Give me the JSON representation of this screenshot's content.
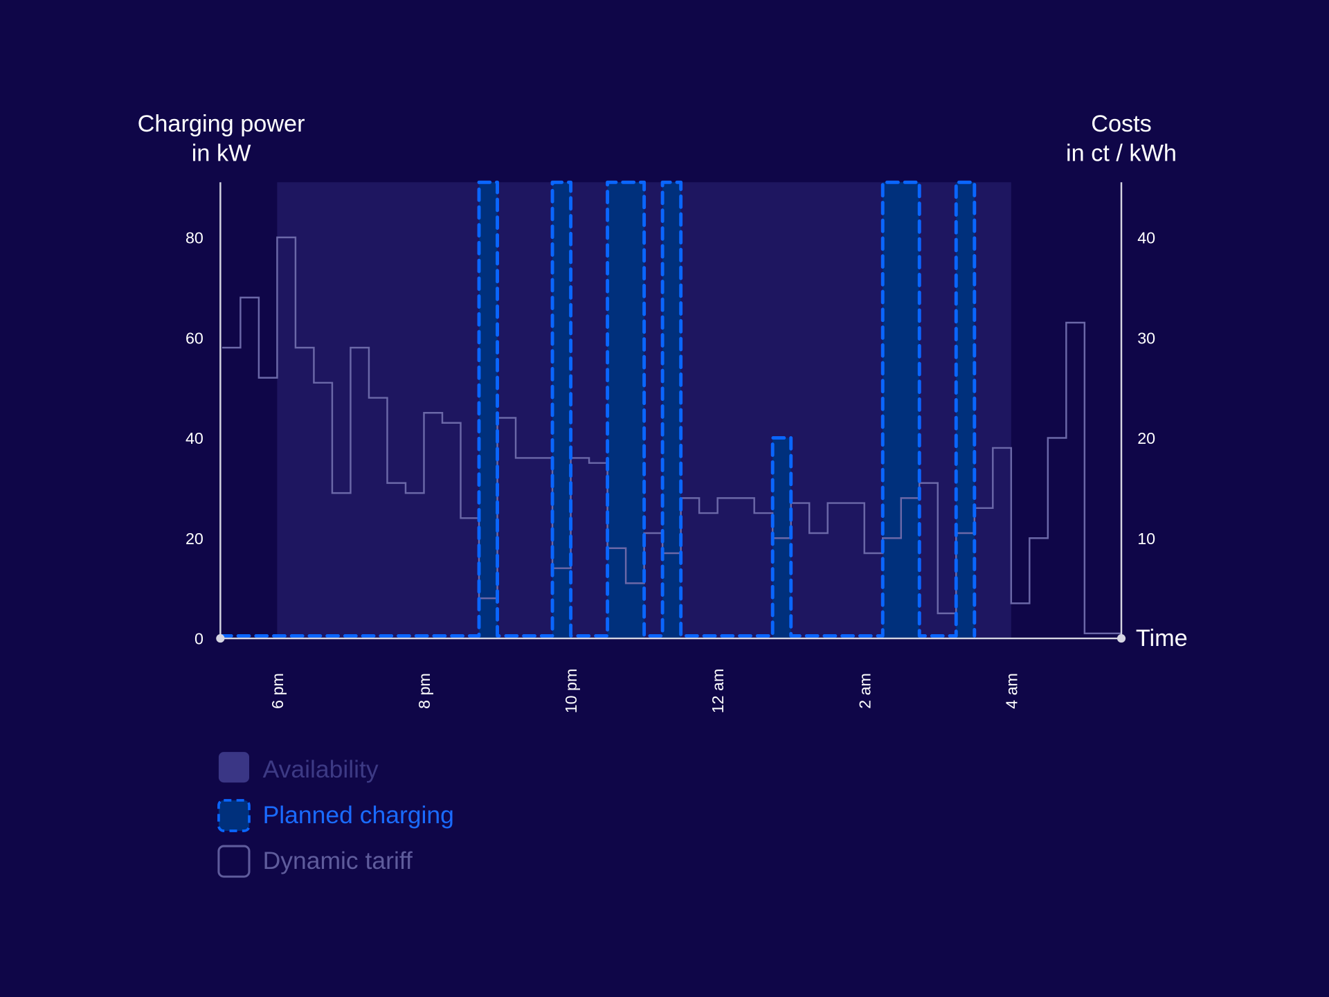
{
  "chart_data": {
    "type": "step-line",
    "left_axis": {
      "title_line1": "Charging power",
      "title_line2": "in kW",
      "ticks": [
        "0",
        "20",
        "40",
        "60",
        "80"
      ],
      "ylim": [
        0,
        91
      ]
    },
    "right_axis": {
      "title_line1": "Costs",
      "title_line2": "in ct / kWh",
      "ticks": [
        "10",
        "20",
        "30",
        "40"
      ],
      "ylim": [
        0,
        45.5
      ]
    },
    "x_axis": {
      "label": "Time",
      "xlim": [
        "17:15",
        "05:30"
      ],
      "ticks": [
        {
          "t": "18:00",
          "label": "6 pm"
        },
        {
          "t": "20:00",
          "label": "8 pm"
        },
        {
          "t": "22:00",
          "label": "10 pm"
        },
        {
          "t": "00:00",
          "label": "12 am"
        },
        {
          "t": "02:00",
          "label": "2 am"
        },
        {
          "t": "04:00",
          "label": "4 am"
        }
      ]
    },
    "availability": {
      "name": "Availability",
      "start": "18:00",
      "end": "04:00",
      "kW": 91,
      "color": "#1e1660"
    },
    "planned_charging": {
      "name": "Planned charging",
      "fill": "#00307c",
      "stroke": "#0a66ff",
      "baseline_kW": 0.5,
      "start": "17:15",
      "end": "03:30",
      "blocks": [
        {
          "start": "20:45",
          "end": "21:00",
          "kW": 91
        },
        {
          "start": "21:45",
          "end": "22:00",
          "kW": 91
        },
        {
          "start": "22:30",
          "end": "23:00",
          "kW": 91
        },
        {
          "start": "23:15",
          "end": "23:30",
          "kW": 91
        },
        {
          "start": "00:45",
          "end": "01:00",
          "kW": 40
        },
        {
          "start": "02:15",
          "end": "02:45",
          "kW": 91
        },
        {
          "start": "03:15",
          "end": "03:30",
          "kW": 91
        }
      ]
    },
    "dynamic_tariff": {
      "name": "Dynamic tariff",
      "unit": "ct/kWh",
      "color": "#6b68a8",
      "interval_minutes": 15,
      "end": "05:30",
      "points": [
        [
          "17:15",
          29
        ],
        [
          "17:30",
          34
        ],
        [
          "17:45",
          26
        ],
        [
          "18:00",
          40
        ],
        [
          "18:15",
          29
        ],
        [
          "18:30",
          25.5
        ],
        [
          "18:45",
          14.5
        ],
        [
          "19:00",
          29
        ],
        [
          "19:15",
          24
        ],
        [
          "19:30",
          15.5
        ],
        [
          "19:45",
          14.5
        ],
        [
          "20:00",
          22.5
        ],
        [
          "20:15",
          21.5
        ],
        [
          "20:30",
          12
        ],
        [
          "20:45",
          4
        ],
        [
          "21:00",
          22
        ],
        [
          "21:15",
          18
        ],
        [
          "21:30",
          18
        ],
        [
          "21:45",
          7
        ],
        [
          "22:00",
          18
        ],
        [
          "22:15",
          17.5
        ],
        [
          "22:30",
          9
        ],
        [
          "22:45",
          5.5
        ],
        [
          "23:00",
          10.5
        ],
        [
          "23:15",
          8.5
        ],
        [
          "23:30",
          14
        ],
        [
          "23:45",
          12.5
        ],
        [
          "00:00",
          14
        ],
        [
          "00:15",
          14
        ],
        [
          "00:30",
          12.5
        ],
        [
          "00:45",
          10
        ],
        [
          "01:00",
          13.5
        ],
        [
          "01:15",
          10.5
        ],
        [
          "01:30",
          13.5
        ],
        [
          "01:45",
          13.5
        ],
        [
          "02:00",
          8.5
        ],
        [
          "02:15",
          10
        ],
        [
          "02:30",
          14
        ],
        [
          "02:45",
          15.5
        ],
        [
          "03:00",
          2.5
        ],
        [
          "03:15",
          10.5
        ],
        [
          "03:30",
          13
        ],
        [
          "03:45",
          19
        ],
        [
          "04:00",
          3.5
        ],
        [
          "04:15",
          10
        ],
        [
          "04:30",
          20
        ],
        [
          "04:45",
          31.5
        ],
        [
          "05:00",
          0.5
        ],
        [
          "05:15",
          0.5
        ]
      ]
    },
    "legend": [
      {
        "label": "Availability",
        "color": "#3d3a85"
      },
      {
        "label": "Planned charging",
        "color": "#1a6bff"
      },
      {
        "label": "Dynamic tariff",
        "color": "#5f5c9c"
      }
    ]
  }
}
